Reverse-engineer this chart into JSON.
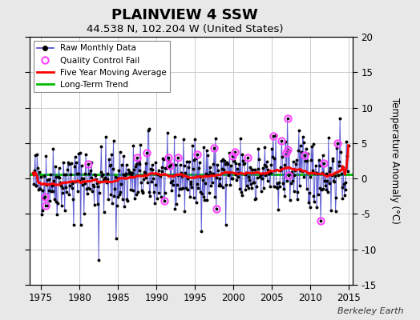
{
  "title": "PLAINVIEW 4 SSW",
  "subtitle": "44.538 N, 102.204 W (United States)",
  "ylabel": "Temperature Anomaly (°C)",
  "watermark": "Berkeley Earth",
  "xlim": [
    1973.5,
    2015.5
  ],
  "ylim": [
    -15,
    20
  ],
  "yticks": [
    -15,
    -10,
    -5,
    0,
    5,
    10,
    15,
    20
  ],
  "xticks": [
    1975,
    1980,
    1985,
    1990,
    1995,
    2000,
    2005,
    2010,
    2015
  ],
  "bg_color": "#e8e8e8",
  "plot_bg_color": "#ffffff",
  "raw_line_color": "#4444cc",
  "raw_marker_color": "#000000",
  "moving_avg_color": "#ff0000",
  "trend_color": "#00bb00",
  "qc_fail_color": "#ff44ff",
  "n_years_start": 1974,
  "n_years_end": 2014,
  "trend_y": 0.55,
  "seed": 42
}
